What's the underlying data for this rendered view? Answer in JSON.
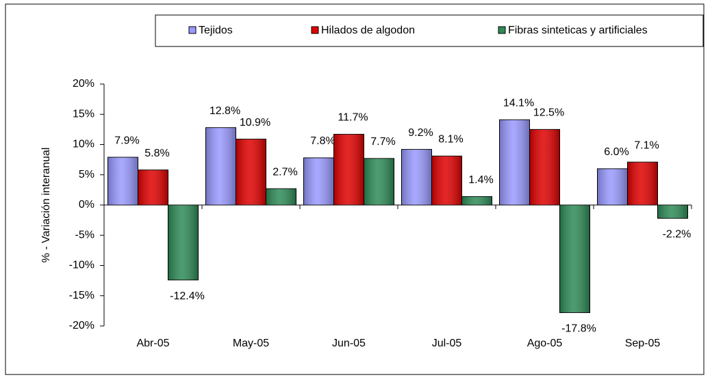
{
  "chart_data": {
    "type": "bar",
    "ylabel": "% - Variación interanual",
    "categories": [
      "Abr-05",
      "May-05",
      "Jun-05",
      "Jul-05",
      "Ago-05",
      "Sep-05"
    ],
    "series": [
      {
        "name": "Tejidos",
        "color": "#9999ff",
        "values": [
          7.9,
          12.8,
          7.8,
          9.2,
          14.1,
          6.0
        ],
        "value_labels": [
          "7.9%",
          "12.8%",
          "7.8%",
          "9.2%",
          "14.1%",
          "6.0%"
        ]
      },
      {
        "name": "Hilados de algodon",
        "color": "#e00000",
        "values": [
          5.8,
          10.9,
          11.7,
          8.1,
          12.5,
          7.1
        ],
        "value_labels": [
          "5.8%",
          "10.9%",
          "11.7%",
          "8.1%",
          "12.5%",
          "7.1%"
        ]
      },
      {
        "name": "Fibras sinteticas y artificiales",
        "color": "#2e8b57",
        "values": [
          -12.4,
          2.7,
          7.7,
          1.4,
          -17.8,
          -2.2
        ],
        "value_labels": [
          "-12.4%",
          "2.7%",
          "7.7%",
          "1.4%",
          "-17.8%",
          "-2.2%"
        ]
      }
    ],
    "ylim": [
      -20,
      20
    ],
    "yticks": [
      {
        "value": -20,
        "label": "-20%"
      },
      {
        "value": -15,
        "label": "-15%"
      },
      {
        "value": -10,
        "label": "-10%"
      },
      {
        "value": -5,
        "label": "-5%"
      },
      {
        "value": 0,
        "label": "0%"
      },
      {
        "value": 5,
        "label": "5%"
      },
      {
        "value": 10,
        "label": "10%"
      },
      {
        "value": 15,
        "label": "15%"
      },
      {
        "value": 20,
        "label": "20%"
      }
    ],
    "legend": "top"
  }
}
